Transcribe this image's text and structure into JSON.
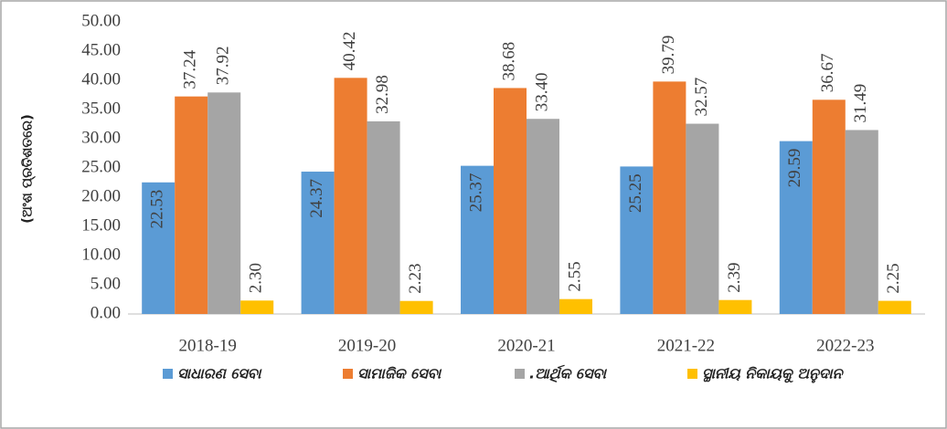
{
  "chart_data": {
    "type": "bar",
    "y_label": "(ଅଂଶ ପ୍ରତିଶତରେ)",
    "categories": [
      "2018-19",
      "2019-20",
      "2020-21",
      "2021-22",
      "2022-23"
    ],
    "series": [
      {
        "name": "ସାଧାରଣ ସେବା",
        "color": "#5b9bd5",
        "values": [
          22.53,
          24.37,
          25.37,
          25.25,
          29.59
        ]
      },
      {
        "name": "ସାମାଜିକ ସେବା",
        "color": "#ed7d31",
        "values": [
          37.24,
          40.42,
          38.68,
          39.79,
          36.67
        ]
      },
      {
        "name": ".ଆର୍ଥିକ ସେବା",
        "color": "#a5a5a5",
        "values": [
          37.92,
          32.98,
          33.4,
          32.57,
          31.49
        ],
        "value_labels": [
          "37.92",
          "32.98",
          "33.40",
          "32.57",
          "31.49"
        ]
      },
      {
        "name": "ସ୍ଥାନୀୟ ନିକାୟକୁ ଅନୁଦାନ",
        "color": "#ffc000",
        "values": [
          2.3,
          2.23,
          2.55,
          2.39,
          2.25
        ],
        "value_labels": [
          "2.30",
          "2.23",
          "2.55",
          "2.39",
          "2.25"
        ]
      }
    ],
    "ylim": [
      0,
      50
    ],
    "yticks": [
      {
        "value": 0,
        "label": "0.00"
      },
      {
        "value": 5,
        "label": "5.00"
      },
      {
        "value": 10,
        "label": "10.00"
      },
      {
        "value": 15,
        "label": "15.00"
      },
      {
        "value": 20,
        "label": "20.00"
      },
      {
        "value": 25,
        "label": "25.00"
      },
      {
        "value": 30,
        "label": "30.00"
      },
      {
        "value": 35,
        "label": "35.00"
      },
      {
        "value": 40,
        "label": "40.00"
      },
      {
        "value": 45,
        "label": "45.00"
      },
      {
        "value": 50,
        "label": "50.00"
      }
    ],
    "legend": "bottom"
  }
}
